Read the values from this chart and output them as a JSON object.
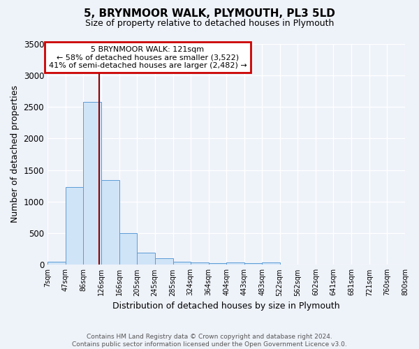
{
  "title": "5, BRYNMOOR WALK, PLYMOUTH, PL3 5LD",
  "subtitle": "Size of property relative to detached houses in Plymouth",
  "xlabel": "Distribution of detached houses by size in Plymouth",
  "ylabel": "Number of detached properties",
  "footnote": "Contains HM Land Registry data © Crown copyright and database right 2024.\nContains public sector information licensed under the Open Government Licence v3.0.",
  "bin_edges": [
    7,
    47,
    86,
    126,
    166,
    205,
    245,
    285,
    324,
    364,
    404,
    443,
    483,
    522,
    562,
    602,
    641,
    681,
    721,
    760,
    800
  ],
  "bar_heights": [
    50,
    1230,
    2580,
    1340,
    500,
    195,
    105,
    50,
    40,
    30,
    40,
    30,
    35,
    0,
    0,
    0,
    0,
    0,
    0,
    0
  ],
  "bar_color": "#d0e4f7",
  "bar_edge_color": "#5b9bd5",
  "property_size": 121,
  "property_line_color": "#8b0000",
  "annotation_line1": "5 BRYNMOOR WALK: 121sqm",
  "annotation_line2": "← 58% of detached houses are smaller (3,522)",
  "annotation_line3": "41% of semi-detached houses are larger (2,482) →",
  "annotation_box_color": "#ffffff",
  "annotation_border_color": "#cc0000",
  "ylim": [
    0,
    3500
  ],
  "yticks": [
    0,
    500,
    1000,
    1500,
    2000,
    2500,
    3000,
    3500
  ],
  "background_color": "#eef2f9",
  "grid_color": "#ffffff"
}
